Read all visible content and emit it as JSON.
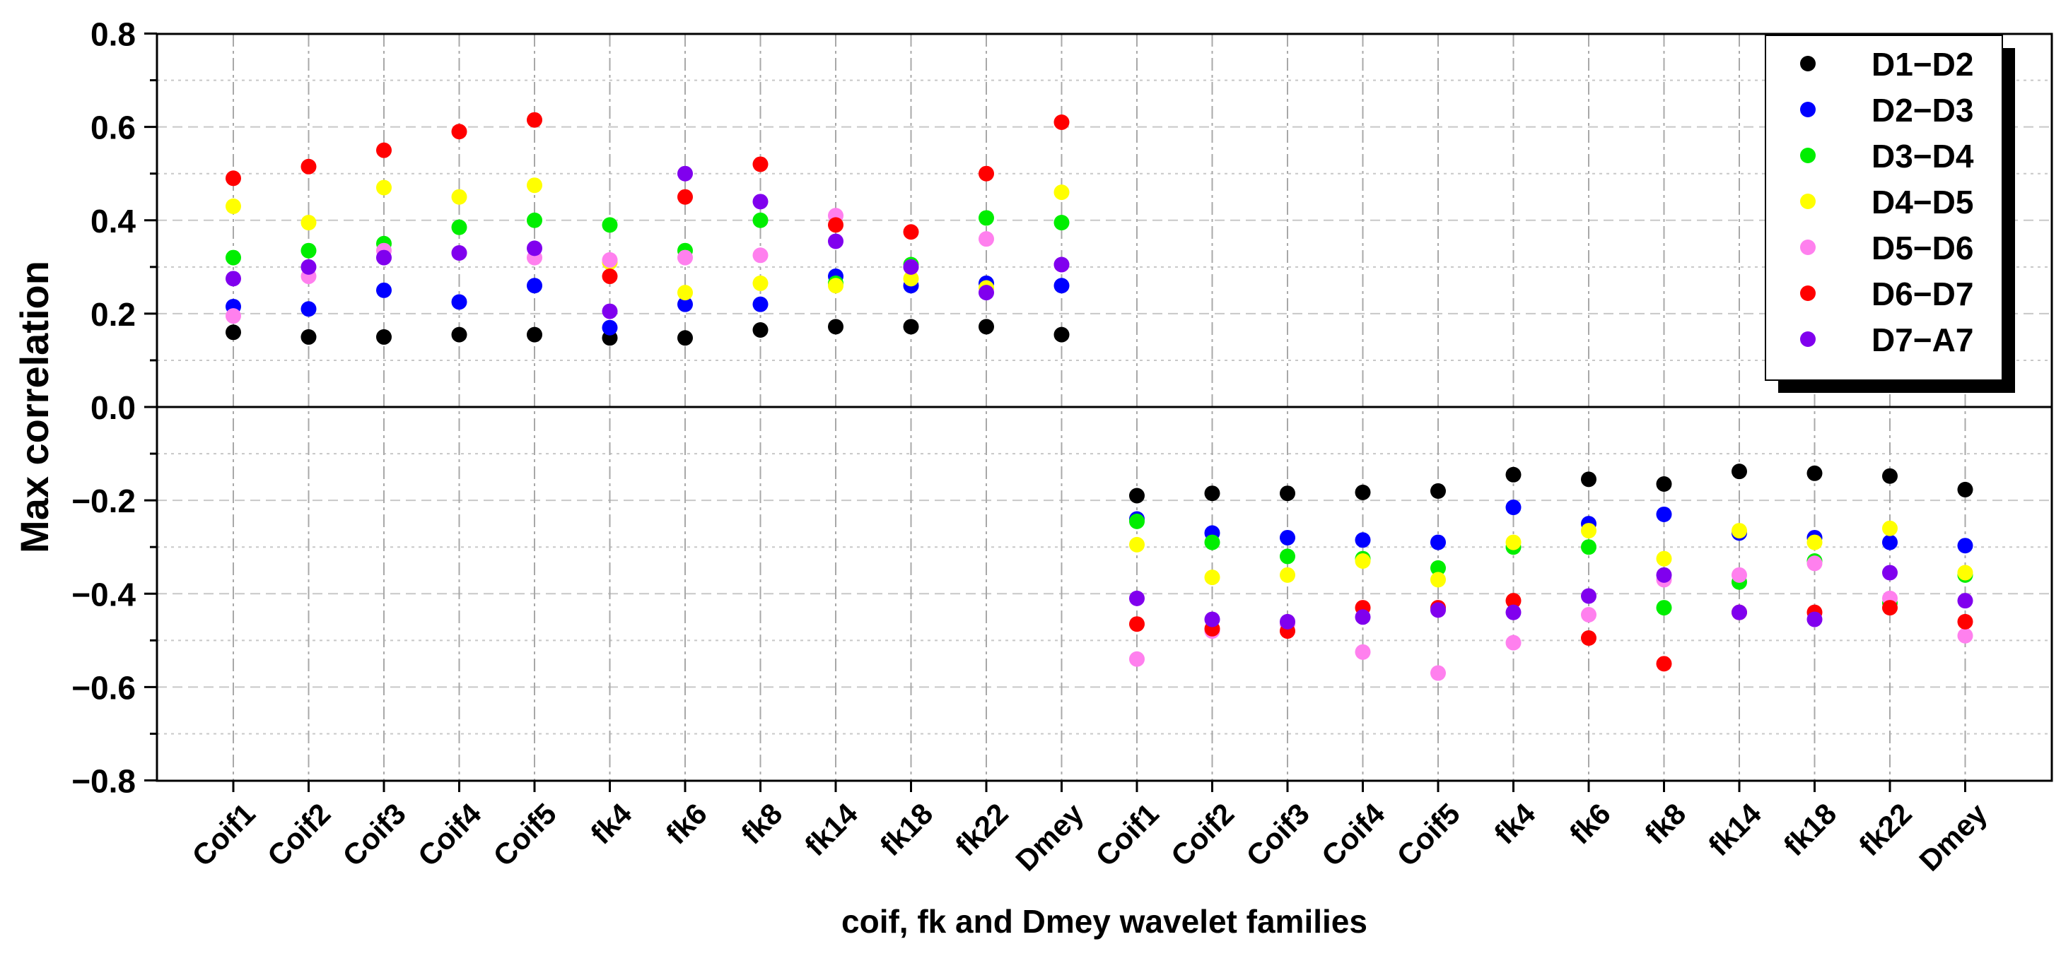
{
  "chart_data": {
    "type": "scatter",
    "xlabel": "coif, fk and Dmey wavelet families",
    "ylabel": "Max correlation",
    "ylim": [
      -0.8,
      0.8
    ],
    "yticks": [
      0.8,
      0.6,
      0.4,
      0.2,
      0.0,
      -0.2,
      -0.4,
      -0.6,
      -0.8
    ],
    "ytick_labels": [
      "0.8",
      "0.6",
      "0.4",
      "0.2",
      "0.0",
      "−0.2",
      "−0.4",
      "−0.6",
      "−0.8"
    ],
    "categories": [
      "Coif1",
      "Coif2",
      "Coif3",
      "Coif4",
      "Coif5",
      "fk4",
      "fk6",
      "fk8",
      "fk14",
      "fk18",
      "fk22",
      "Dmey",
      "Coif1",
      "Coif2",
      "Coif3",
      "Coif4",
      "Coif5",
      "fk4",
      "fk6",
      "fk8",
      "fk14",
      "fk18",
      "fk22",
      "Dmey"
    ],
    "grid": true,
    "legend_position": "top-right",
    "series": [
      {
        "name": "D1−D2",
        "color": "#000000",
        "values": [
          0.16,
          0.15,
          0.15,
          0.155,
          0.155,
          0.148,
          0.148,
          0.165,
          0.172,
          0.172,
          0.172,
          0.155,
          -0.19,
          -0.185,
          -0.185,
          -0.183,
          -0.18,
          -0.145,
          -0.155,
          -0.165,
          -0.138,
          -0.142,
          -0.148,
          -0.177
        ]
      },
      {
        "name": "D2−D3",
        "color": "#0000ff",
        "values": [
          0.215,
          0.21,
          0.25,
          0.225,
          0.26,
          0.17,
          0.22,
          0.22,
          0.28,
          0.26,
          0.265,
          0.26,
          -0.24,
          -0.27,
          -0.28,
          -0.285,
          -0.29,
          -0.215,
          -0.25,
          -0.23,
          -0.27,
          -0.28,
          -0.29,
          -0.297
        ]
      },
      {
        "name": "D3−D4",
        "color": "#00ee00",
        "values": [
          0.32,
          0.335,
          0.35,
          0.385,
          0.4,
          0.39,
          0.335,
          0.4,
          0.265,
          0.305,
          0.405,
          0.395,
          -0.245,
          -0.29,
          -0.32,
          -0.325,
          -0.345,
          -0.3,
          -0.3,
          -0.43,
          -0.375,
          -0.33,
          -0.42,
          -0.36
        ]
      },
      {
        "name": "D4−D5",
        "color": "#ffff00",
        "values": [
          0.43,
          0.395,
          0.47,
          0.45,
          0.475,
          0.31,
          0.245,
          0.265,
          0.26,
          0.275,
          0.255,
          0.46,
          -0.295,
          -0.365,
          -0.36,
          -0.33,
          -0.37,
          -0.29,
          -0.265,
          -0.325,
          -0.265,
          -0.29,
          -0.26,
          -0.355
        ]
      },
      {
        "name": "D5−D6",
        "color": "#ff80ee",
        "values": [
          0.195,
          0.28,
          0.335,
          0.33,
          0.32,
          0.315,
          0.32,
          0.325,
          0.41,
          0.3,
          0.36,
          0.305,
          -0.54,
          -0.48,
          -0.465,
          -0.525,
          -0.57,
          -0.505,
          -0.445,
          -0.37,
          -0.36,
          -0.335,
          -0.41,
          -0.49
        ]
      },
      {
        "name": "D6−D7",
        "color": "#ff0000",
        "values": [
          0.49,
          0.515,
          0.55,
          0.59,
          0.615,
          0.28,
          0.45,
          0.52,
          0.39,
          0.375,
          0.5,
          0.61,
          -0.465,
          -0.475,
          -0.48,
          -0.43,
          -0.43,
          -0.415,
          -0.495,
          -0.55,
          -0.44,
          -0.44,
          -0.43,
          -0.46
        ]
      },
      {
        "name": "D7−A7",
        "color": "#8000ee",
        "values": [
          0.275,
          0.3,
          0.32,
          0.33,
          0.34,
          0.205,
          0.5,
          0.44,
          0.355,
          0.3,
          0.245,
          0.305,
          -0.41,
          -0.455,
          -0.46,
          -0.45,
          -0.435,
          -0.44,
          -0.405,
          -0.36,
          -0.44,
          -0.455,
          -0.355,
          -0.415
        ]
      }
    ]
  }
}
